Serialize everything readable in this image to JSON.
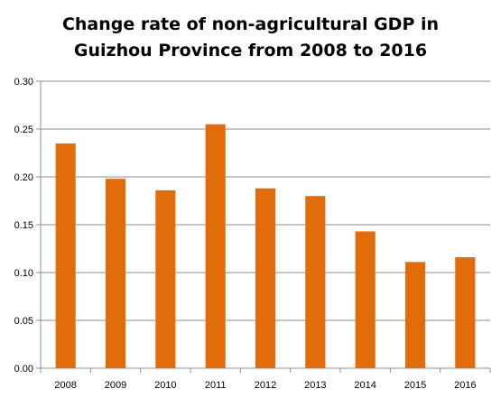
{
  "chart_data": {
    "type": "bar",
    "title_lines": [
      "Change rate of non-agricultural GDP in",
      "Guizhou Province from 2008 to 2016"
    ],
    "categories": [
      "2008",
      "2009",
      "2010",
      "2011",
      "2012",
      "2013",
      "2014",
      "2015",
      "2016"
    ],
    "values": [
      0.235,
      0.198,
      0.186,
      0.255,
      0.188,
      0.18,
      0.143,
      0.111,
      0.116
    ],
    "xlabel": "",
    "ylabel": "",
    "ylim": [
      0,
      0.3
    ],
    "yticks": [
      "0.00",
      "0.05",
      "0.10",
      "0.15",
      "0.20",
      "0.25",
      "0.30"
    ],
    "grid": true,
    "bar_color": "#E36C0A"
  }
}
